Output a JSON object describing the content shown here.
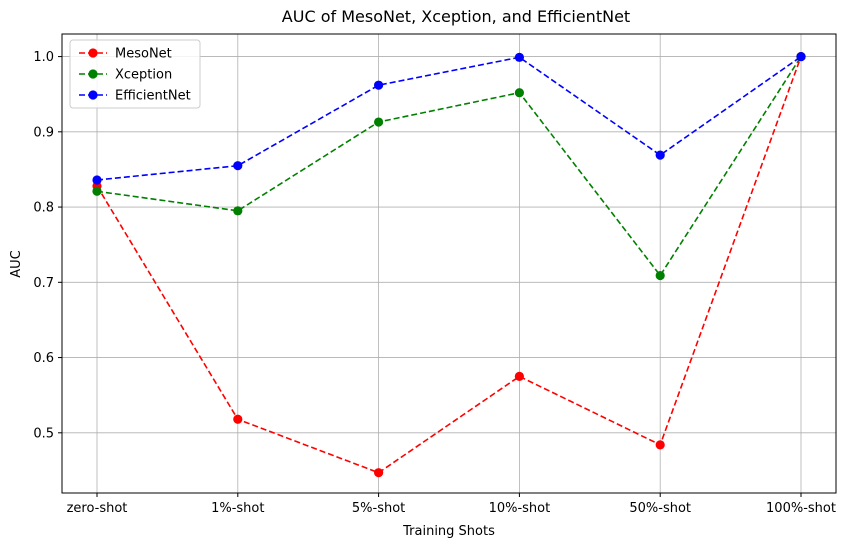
{
  "chart_data": {
    "type": "line",
    "title": "AUC of MesoNet, Xception, and EfficientNet",
    "xlabel": "Training Shots",
    "ylabel": "AUC",
    "categories": [
      "zero-shot",
      "1%-shot",
      "5%-shot",
      "10%-shot",
      "50%-shot",
      "100%-shot"
    ],
    "ylim": [
      0.42,
      1.03
    ],
    "yticks": [
      "0.5",
      "0.6",
      "0.7",
      "0.8",
      "0.9",
      "1.0"
    ],
    "grid": true,
    "legend_position": "top-left",
    "line_style": "dashed",
    "marker": "circle",
    "series": [
      {
        "name": "MesoNet",
        "color": "#ff0000",
        "values": [
          0.828,
          0.518,
          0.447,
          0.575,
          0.484,
          1.0
        ]
      },
      {
        "name": "Xception",
        "color": "#008000",
        "values": [
          0.821,
          0.795,
          0.913,
          0.952,
          0.709,
          1.0
        ]
      },
      {
        "name": "EfficientNet",
        "color": "#0000ff",
        "values": [
          0.836,
          0.855,
          0.962,
          0.999,
          0.869,
          1.0
        ]
      }
    ]
  }
}
